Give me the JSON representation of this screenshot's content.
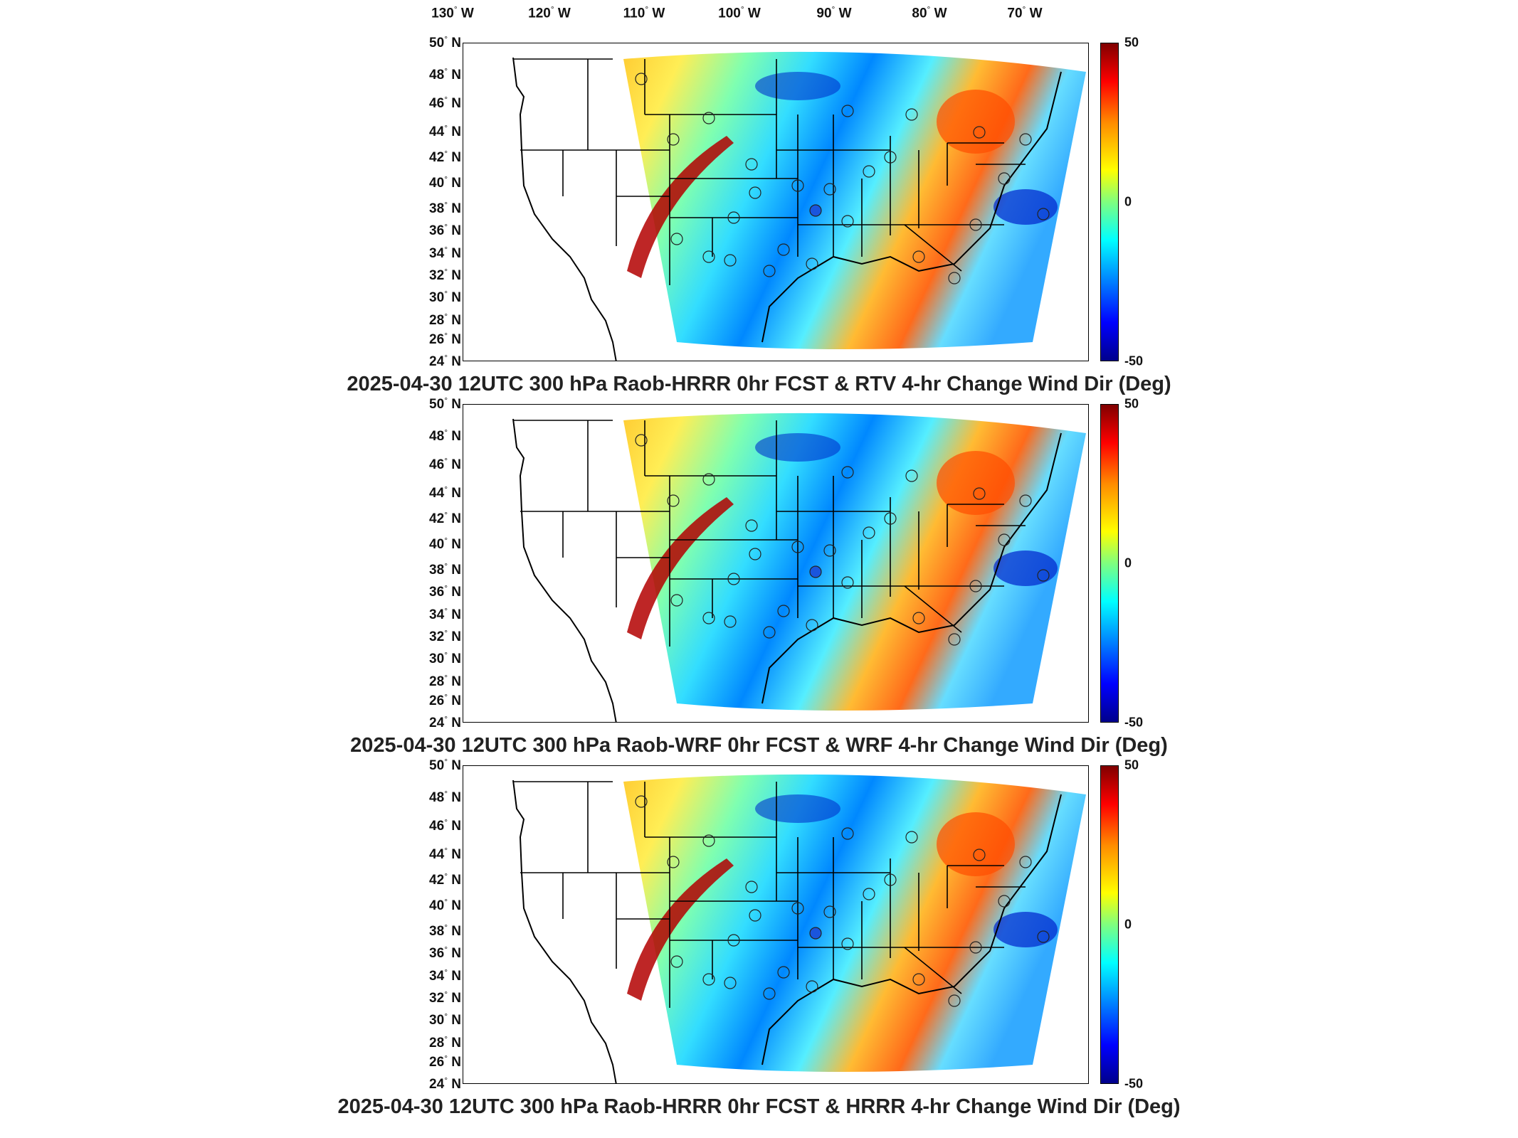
{
  "longitude_labels": [
    {
      "deg": "130",
      "hemi": "W"
    },
    {
      "deg": "120",
      "hemi": "W"
    },
    {
      "deg": "110",
      "hemi": "W"
    },
    {
      "deg": "100",
      "hemi": "W"
    },
    {
      "deg": "90",
      "hemi": "W"
    },
    {
      "deg": "80",
      "hemi": "W"
    },
    {
      "deg": "70",
      "hemi": "W"
    }
  ],
  "latitude_labels": [
    {
      "deg": "50",
      "hemi": "N"
    },
    {
      "deg": "48",
      "hemi": "N"
    },
    {
      "deg": "46",
      "hemi": "N"
    },
    {
      "deg": "44",
      "hemi": "N"
    },
    {
      "deg": "42",
      "hemi": "N"
    },
    {
      "deg": "40",
      "hemi": "N"
    },
    {
      "deg": "38",
      "hemi": "N"
    },
    {
      "deg": "36",
      "hemi": "N"
    },
    {
      "deg": "34",
      "hemi": "N"
    },
    {
      "deg": "32",
      "hemi": "N"
    },
    {
      "deg": "30",
      "hemi": "N"
    },
    {
      "deg": "28",
      "hemi": "N"
    },
    {
      "deg": "26",
      "hemi": "N"
    },
    {
      "deg": "24",
      "hemi": "N"
    }
  ],
  "degree_symbol": "°",
  "colorbar": {
    "ticks": [
      "50",
      "0",
      "-50"
    ],
    "range": [
      -50,
      50
    ],
    "colors": [
      "#00008b",
      "#0000ff",
      "#0080ff",
      "#00ffff",
      "#7fff7f",
      "#ffff00",
      "#ff8c00",
      "#ff0000",
      "#800000"
    ]
  },
  "panels": [
    {
      "caption": "2025-04-30 12UTC 300 hPa Raob-HRRR 0hr FCST & RTV 4-hr Change Wind Dir (Deg)"
    },
    {
      "caption": "2025-04-30 12UTC 300 hPa Raob-WRF 0hr FCST & WRF 4-hr Change Wind Dir (Deg)"
    },
    {
      "caption": "2025-04-30 12UTC 300 hPa Raob-HRRR 0hr FCST & HRRR 4-hr Change Wind Dir (Deg)"
    }
  ]
}
